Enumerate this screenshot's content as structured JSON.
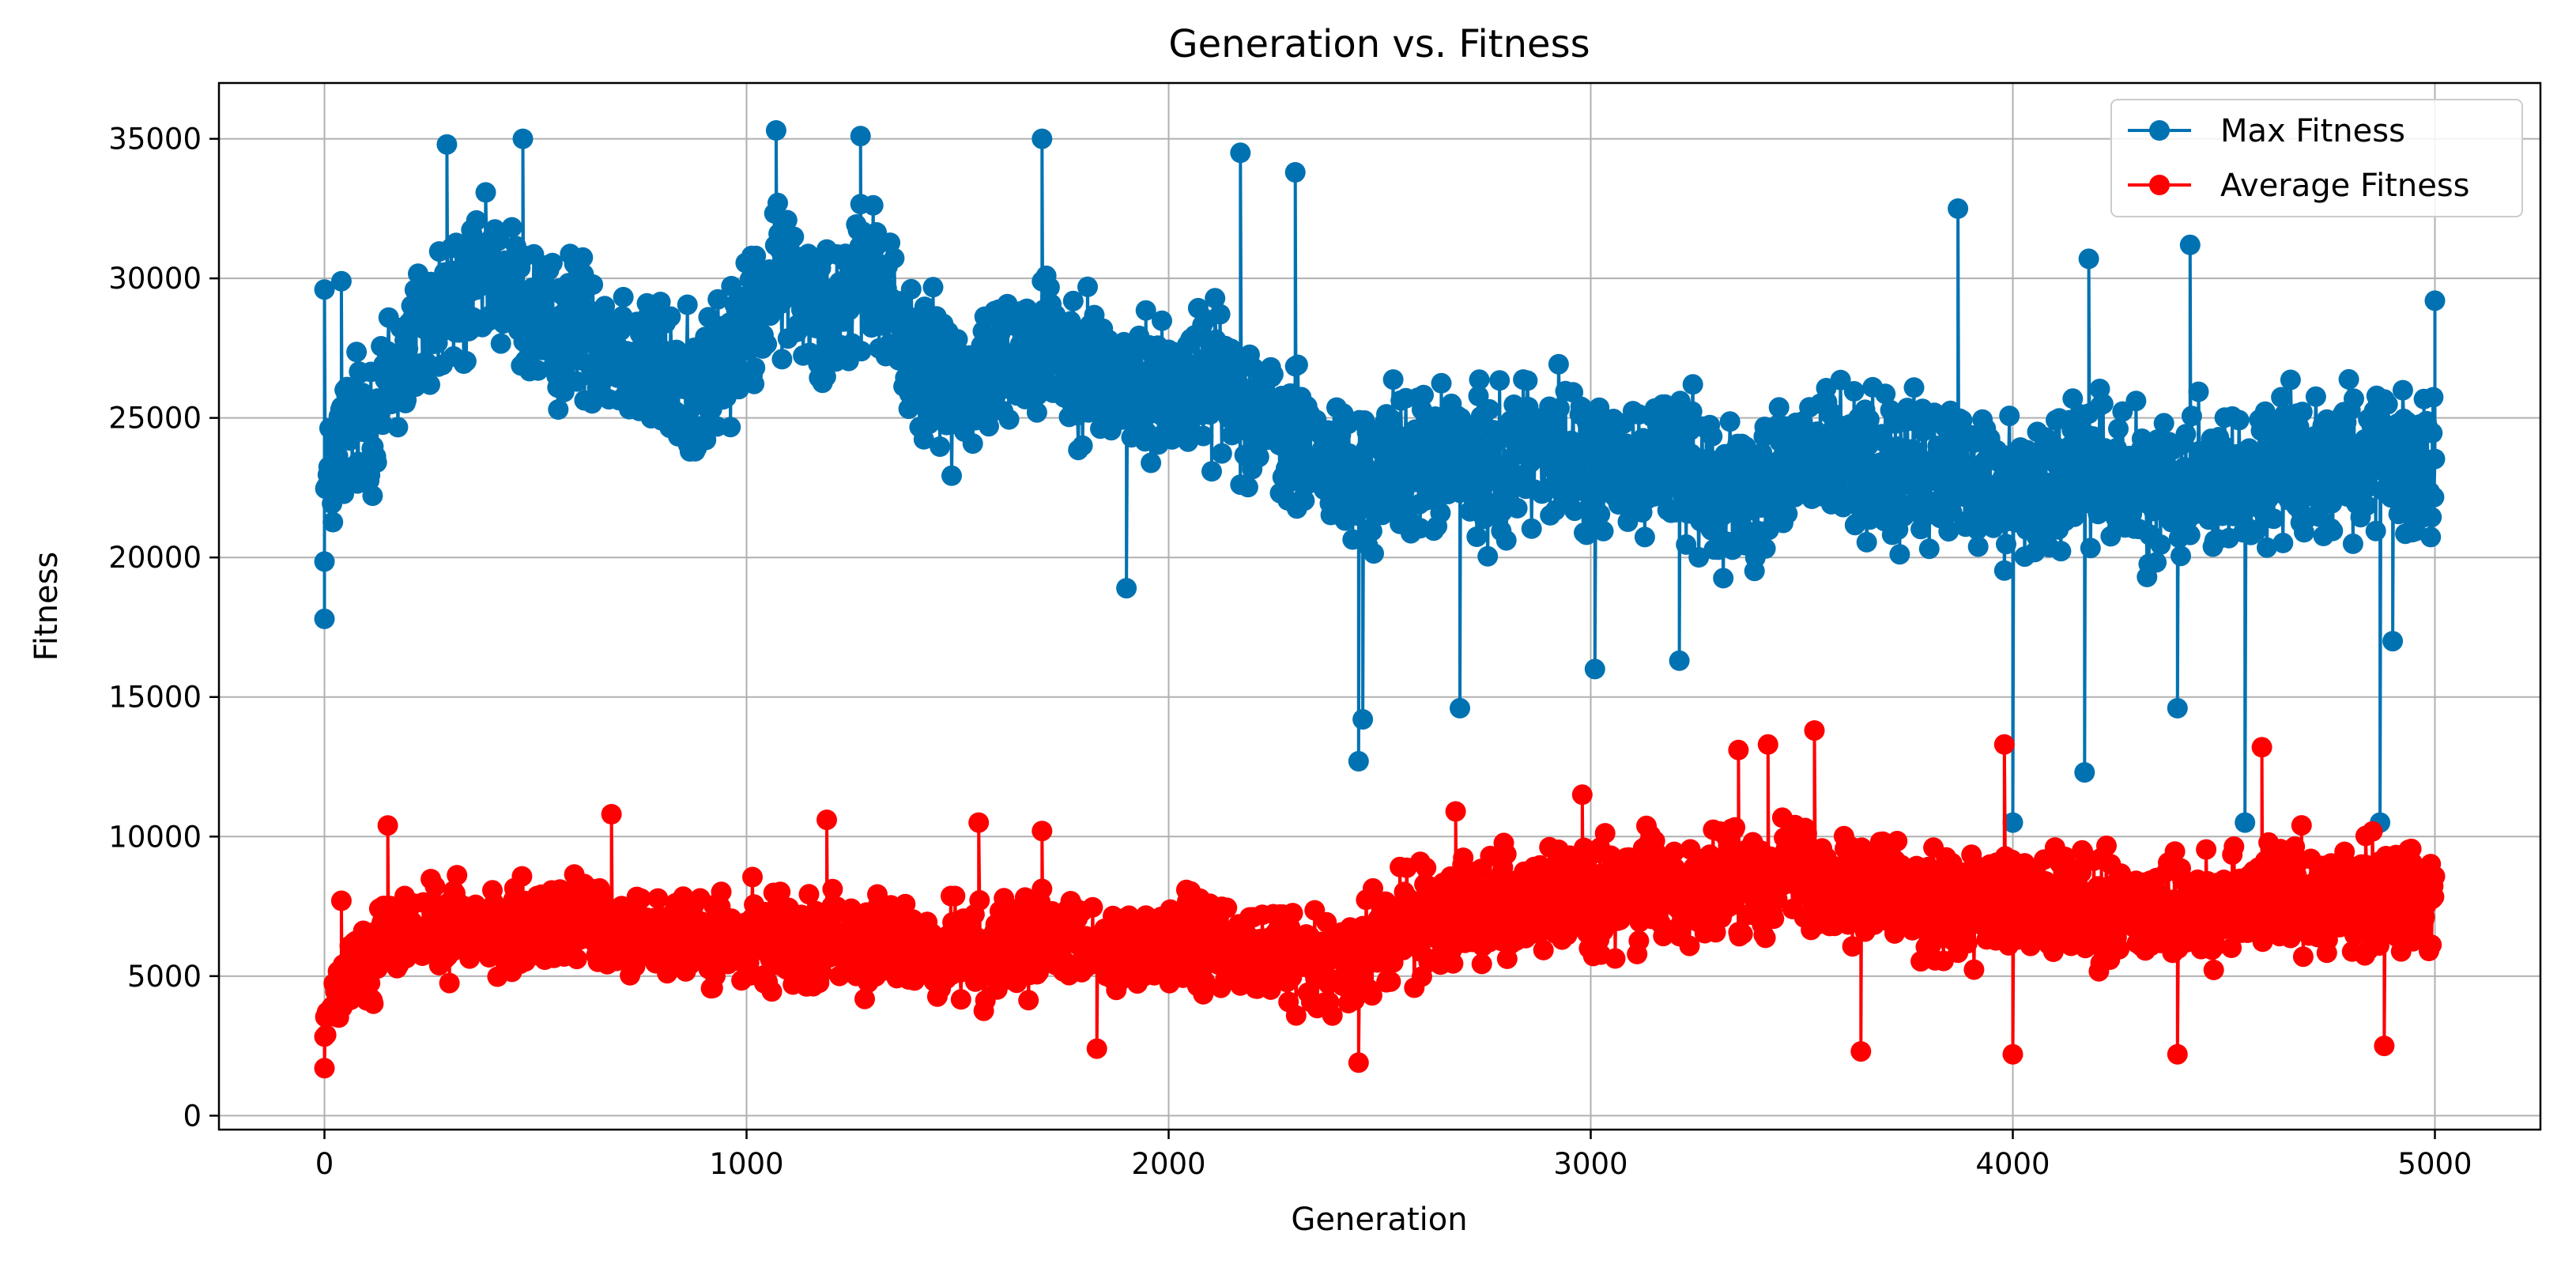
{
  "chart_data": {
    "type": "line",
    "title": "Generation vs. Fitness",
    "xlabel": "Generation",
    "ylabel": "Fitness",
    "xlim": [
      -250,
      5250
    ],
    "ylim": [
      -500,
      37000
    ],
    "xticks": [
      0,
      1000,
      2000,
      3000,
      4000,
      5000
    ],
    "xtick_labels": [
      "0",
      "1000",
      "2000",
      "3000",
      "4000",
      "5000"
    ],
    "yticks": [
      0,
      5000,
      10000,
      15000,
      20000,
      25000,
      30000,
      35000
    ],
    "ytick_labels": [
      "0",
      "5000",
      "10000",
      "15000",
      "20000",
      "25000",
      "30000",
      "35000"
    ],
    "grid": true,
    "legend_position": "top-right",
    "marker": "circle",
    "series": [
      {
        "name": "Max Fitness",
        "color": "#0072b2",
        "x": [
          0,
          50,
          100,
          150,
          200,
          250,
          300,
          350,
          400,
          450,
          500,
          550,
          600,
          650,
          700,
          750,
          800,
          850,
          900,
          950,
          1000,
          1050,
          1100,
          1150,
          1200,
          1250,
          1300,
          1350,
          1400,
          1450,
          1500,
          1550,
          1600,
          1650,
          1700,
          1750,
          1800,
          1850,
          1900,
          1950,
          2000,
          2050,
          2100,
          2150,
          2200,
          2250,
          2300,
          2350,
          2400,
          2450,
          2500,
          2550,
          2600,
          2650,
          2700,
          2750,
          2800,
          2850,
          2900,
          2950,
          3000,
          3050,
          3100,
          3150,
          3200,
          3250,
          3300,
          3350,
          3400,
          3450,
          3500,
          3550,
          3600,
          3650,
          3700,
          3750,
          3800,
          3850,
          3900,
          3950,
          4000,
          4050,
          4100,
          4150,
          4200,
          4250,
          4300,
          4350,
          4400,
          4450,
          4500,
          4550,
          4600,
          4650,
          4700,
          4750,
          4800,
          4850,
          4900,
          4950,
          5000
        ],
        "values": [
          22000,
          24500,
          25000,
          26000,
          27500,
          28500,
          29000,
          29500,
          30000,
          29500,
          28500,
          28000,
          28500,
          28000,
          27500,
          27000,
          26500,
          26000,
          26500,
          27000,
          28000,
          29500,
          30000,
          29500,
          29000,
          29500,
          30000,
          28500,
          27000,
          26500,
          26000,
          26500,
          27000,
          27500,
          28000,
          27500,
          27000,
          26500,
          26000,
          26000,
          26000,
          26500,
          26500,
          26000,
          25500,
          24500,
          24000,
          23500,
          23000,
          22500,
          23000,
          23500,
          23500,
          23500,
          23500,
          23000,
          23500,
          24000,
          24000,
          23500,
          23500,
          23000,
          23000,
          23500,
          23500,
          23000,
          22500,
          22500,
          22500,
          23000,
          23500,
          23500,
          23500,
          23500,
          23000,
          23000,
          23000,
          23000,
          23000,
          22500,
          22500,
          22500,
          22500,
          23000,
          23500,
          23000,
          22500,
          22500,
          23000,
          23000,
          23000,
          22500,
          23000,
          23500,
          23500,
          23500,
          23500,
          23500,
          23000,
          23000,
          23000
        ],
        "spread": [
          3500,
          3800,
          4000,
          4200,
          4200,
          4200,
          4000,
          3800,
          3800,
          3800,
          3800,
          3800,
          3800,
          3800,
          3800,
          3800,
          3800,
          3800,
          3800,
          3800,
          3800,
          3800,
          3800,
          3800,
          3800,
          3800,
          3800,
          3800,
          3800,
          3800,
          3800,
          3800,
          3800,
          3800,
          3800,
          3800,
          3800,
          3800,
          3800,
          3800,
          3800,
          3800,
          3800,
          3800,
          3800,
          3800,
          3800,
          3800,
          3800,
          3800,
          3800,
          3800,
          3800,
          3800,
          3800,
          3800,
          3800,
          3800,
          3800,
          3800,
          3800,
          3800,
          3800,
          3800,
          3800,
          3800,
          3800,
          3800,
          3800,
          3800,
          3800,
          3800,
          3800,
          3800,
          3800,
          3800,
          3800,
          3800,
          3800,
          3800,
          3800,
          3800,
          3800,
          3800,
          3800,
          3800,
          3800,
          3800,
          3800,
          3800,
          3800,
          3800,
          3800,
          3800,
          3800,
          3800,
          3800,
          3800,
          3800,
          3800,
          3800
        ],
        "notable_points": [
          [
            0,
            17800
          ],
          [
            0,
            29600
          ],
          [
            40,
            29900
          ],
          [
            290,
            34800
          ],
          [
            470,
            35000
          ],
          [
            1070,
            35300
          ],
          [
            1270,
            35100
          ],
          [
            1700,
            35000
          ],
          [
            1900,
            18900
          ],
          [
            2170,
            34500
          ],
          [
            2300,
            33800
          ],
          [
            2450,
            12700
          ],
          [
            2460,
            14200
          ],
          [
            2690,
            14600
          ],
          [
            3010,
            16000
          ],
          [
            3210,
            16300
          ],
          [
            3870,
            32500
          ],
          [
            4000,
            10500
          ],
          [
            4170,
            12300
          ],
          [
            4180,
            30700
          ],
          [
            4390,
            14600
          ],
          [
            4420,
            31200
          ],
          [
            4550,
            10500
          ],
          [
            4870,
            10500
          ],
          [
            4900,
            17000
          ],
          [
            5000,
            29200
          ]
        ]
      },
      {
        "name": "Average Fitness",
        "color": "#ff0000",
        "x": [
          0,
          50,
          100,
          150,
          200,
          250,
          300,
          350,
          400,
          450,
          500,
          550,
          600,
          650,
          700,
          750,
          800,
          850,
          900,
          950,
          1000,
          1050,
          1100,
          1150,
          1200,
          1250,
          1300,
          1350,
          1400,
          1450,
          1500,
          1550,
          1600,
          1650,
          1700,
          1750,
          1800,
          1850,
          1900,
          1950,
          2000,
          2050,
          2100,
          2150,
          2200,
          2250,
          2300,
          2350,
          2400,
          2450,
          2500,
          2550,
          2600,
          2650,
          2700,
          2750,
          2800,
          2850,
          2900,
          2950,
          3000,
          3050,
          3100,
          3150,
          3200,
          3250,
          3300,
          3350,
          3400,
          3450,
          3500,
          3550,
          3600,
          3650,
          3700,
          3750,
          3800,
          3850,
          3900,
          3950,
          4000,
          4050,
          4100,
          4150,
          4200,
          4250,
          4300,
          4350,
          4400,
          4450,
          4500,
          4550,
          4600,
          4650,
          4700,
          4750,
          4800,
          4850,
          4900,
          4950,
          5000
        ],
        "values": [
          3000,
          5000,
          5800,
          6200,
          6500,
          6600,
          6700,
          6700,
          6600,
          6500,
          6600,
          6800,
          6900,
          7000,
          6900,
          6700,
          6400,
          6200,
          6200,
          6100,
          6200,
          6300,
          6400,
          6400,
          6400,
          6300,
          6200,
          6100,
          6000,
          5900,
          5900,
          6000,
          6000,
          6100,
          6200,
          6200,
          6000,
          5900,
          6000,
          6100,
          6200,
          6200,
          6100,
          6000,
          5900,
          5800,
          5700,
          5600,
          5500,
          5300,
          6200,
          6800,
          7100,
          7300,
          7400,
          7500,
          7700,
          7800,
          7800,
          7700,
          7700,
          7800,
          8000,
          8100,
          8100,
          8200,
          8300,
          8400,
          8600,
          8700,
          8700,
          8600,
          8500,
          8300,
          8100,
          7900,
          7700,
          7600,
          7500,
          7500,
          7500,
          7400,
          7400,
          7300,
          7300,
          7200,
          7100,
          7100,
          7200,
          7300,
          7500,
          7600,
          7800,
          7900,
          8000,
          8000,
          7900,
          7900,
          7900,
          8000,
          8000
        ],
        "spread": [
          1500,
          2000,
          2300,
          2400,
          2400,
          2400,
          2400,
          2400,
          2400,
          2400,
          2400,
          2400,
          2400,
          2400,
          2400,
          2400,
          2400,
          2400,
          2400,
          2400,
          2400,
          2400,
          2400,
          2400,
          2400,
          2400,
          2400,
          2400,
          2400,
          2400,
          2400,
          2400,
          2400,
          2400,
          2400,
          2400,
          2400,
          2400,
          2400,
          2400,
          2400,
          2400,
          2400,
          2400,
          2400,
          2400,
          2400,
          2400,
          2400,
          2400,
          2800,
          2800,
          2800,
          2800,
          2800,
          2800,
          2800,
          2800,
          2800,
          2800,
          2800,
          2800,
          2800,
          2800,
          2800,
          2800,
          2800,
          2800,
          2800,
          2800,
          2800,
          2800,
          2800,
          2800,
          2800,
          2800,
          2800,
          2800,
          2800,
          2800,
          2800,
          2800,
          2800,
          2800,
          2800,
          2800,
          2800,
          2800,
          2800,
          2800,
          2800,
          2800,
          2800,
          2800,
          2800,
          2800,
          2800,
          2800,
          2800,
          2800,
          2800
        ],
        "notable_points": [
          [
            0,
            1700
          ],
          [
            40,
            7700
          ],
          [
            150,
            10400
          ],
          [
            680,
            10800
          ],
          [
            1190,
            10600
          ],
          [
            1550,
            10500
          ],
          [
            1700,
            10200
          ],
          [
            1830,
            2400
          ],
          [
            2450,
            1900
          ],
          [
            2680,
            10900
          ],
          [
            2980,
            11500
          ],
          [
            3350,
            13100
          ],
          [
            3420,
            13300
          ],
          [
            3530,
            13800
          ],
          [
            3640,
            2300
          ],
          [
            3980,
            13300
          ],
          [
            4000,
            2200
          ],
          [
            4390,
            2200
          ],
          [
            4590,
            13200
          ],
          [
            4880,
            2500
          ]
        ]
      }
    ]
  }
}
